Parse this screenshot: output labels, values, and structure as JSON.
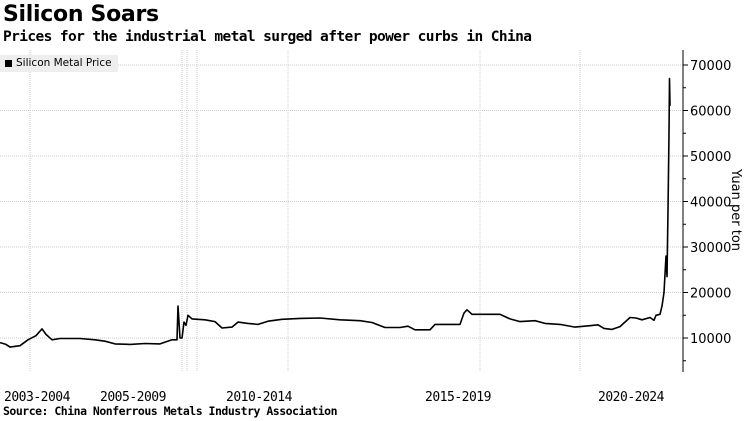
{
  "title": "Silicon Soars",
  "subtitle": "Prices for the industrial metal surged after power curbs in China",
  "source": "Source: China Nonferrous Metals Industry Association",
  "chart_data": {
    "type": "line",
    "title": "Silicon Soars",
    "xlabel": "",
    "ylabel": "Yuan per ton",
    "ylim": [
      2000,
      73000
    ],
    "xlim": [
      0,
      683
    ],
    "yticks": [
      10000,
      20000,
      30000,
      40000,
      50000,
      60000,
      70000
    ],
    "xticks": [
      {
        "t": 37,
        "label": "2003-2004"
      },
      {
        "t": 133,
        "label": "2005-2009"
      },
      {
        "t": 259,
        "label": "2010-2014"
      },
      {
        "t": 458,
        "label": "2015-2019"
      },
      {
        "t": 631,
        "label": "2020-2024"
      }
    ],
    "xgrid": [
      30,
      182,
      187,
      197,
      288,
      480,
      580
    ],
    "grid": true,
    "legend": {
      "position": "top-left",
      "entries": [
        "Silicon Metal Price"
      ]
    },
    "series": [
      {
        "name": "Silicon Metal Price",
        "color": "#000000",
        "points": [
          [
            0,
            9000
          ],
          [
            6,
            8600
          ],
          [
            10,
            8000
          ],
          [
            20,
            8300
          ],
          [
            28,
            9600
          ],
          [
            36,
            10500
          ],
          [
            42,
            12000
          ],
          [
            46,
            10800
          ],
          [
            52,
            9600
          ],
          [
            60,
            9900
          ],
          [
            80,
            9900
          ],
          [
            95,
            9600
          ],
          [
            105,
            9300
          ],
          [
            115,
            8700
          ],
          [
            130,
            8600
          ],
          [
            145,
            8800
          ],
          [
            160,
            8700
          ],
          [
            172,
            9600
          ],
          [
            177,
            9600
          ],
          [
            178,
            17000
          ],
          [
            180,
            10000
          ],
          [
            182,
            10000
          ],
          [
            184,
            13500
          ],
          [
            186,
            12800
          ],
          [
            188,
            15000
          ],
          [
            192,
            14200
          ],
          [
            205,
            14000
          ],
          [
            215,
            13600
          ],
          [
            222,
            12200
          ],
          [
            232,
            12400
          ],
          [
            238,
            13500
          ],
          [
            248,
            13200
          ],
          [
            258,
            13000
          ],
          [
            268,
            13700
          ],
          [
            282,
            14100
          ],
          [
            300,
            14300
          ],
          [
            320,
            14400
          ],
          [
            340,
            14000
          ],
          [
            360,
            13800
          ],
          [
            372,
            13400
          ],
          [
            385,
            12300
          ],
          [
            400,
            12300
          ],
          [
            408,
            12600
          ],
          [
            415,
            11800
          ],
          [
            430,
            11800
          ],
          [
            435,
            13000
          ],
          [
            455,
            13000
          ],
          [
            460,
            13000
          ],
          [
            464,
            15500
          ],
          [
            467,
            16200
          ],
          [
            472,
            15200
          ],
          [
            485,
            15200
          ],
          [
            500,
            15200
          ],
          [
            510,
            14200
          ],
          [
            520,
            13600
          ],
          [
            535,
            13800
          ],
          [
            545,
            13200
          ],
          [
            560,
            13000
          ],
          [
            575,
            12400
          ],
          [
            590,
            12700
          ],
          [
            598,
            12900
          ],
          [
            604,
            12100
          ],
          [
            612,
            11900
          ],
          [
            620,
            12500
          ],
          [
            630,
            14500
          ],
          [
            636,
            14400
          ],
          [
            642,
            14000
          ],
          [
            650,
            14500
          ],
          [
            654,
            13900
          ],
          [
            656,
            15000
          ],
          [
            660,
            15200
          ],
          [
            662,
            17000
          ],
          [
            664,
            20000
          ],
          [
            665,
            24000
          ],
          [
            666,
            28000
          ],
          [
            667,
            23500
          ],
          [
            668,
            38000
          ],
          [
            669,
            55000
          ],
          [
            669.5,
            67000
          ],
          [
            670,
            61000
          ]
        ]
      }
    ]
  }
}
